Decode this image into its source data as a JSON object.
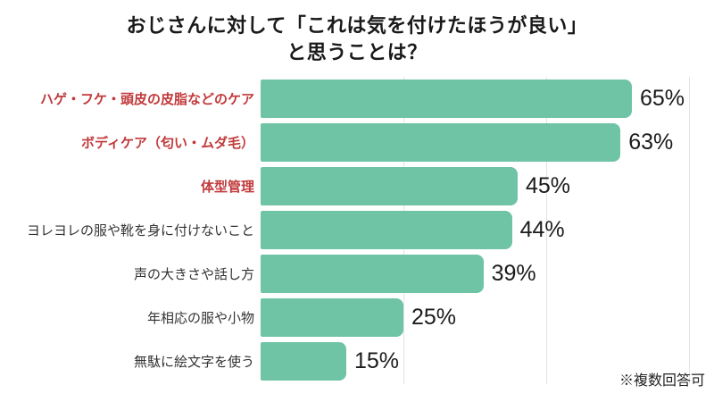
{
  "title": {
    "line1": "おじさんに対して「これは気を付けたほうが良い」",
    "line2": "と思うことは？"
  },
  "footnote": "※複数回答可",
  "colors": {
    "bar": "#6ec4a4",
    "highlight_label": "#c13a3c",
    "label": "#333333",
    "value": "#1b1b1b",
    "title": "#1a1a1a",
    "gridline": "#e3e3e3",
    "background": "#ffffff"
  },
  "chart_data": {
    "type": "bar",
    "orientation": "horizontal",
    "title": "おじさんに対して「これは気を付けたほうが良い」と思うことは？",
    "categories": [
      "ハゲ・フケ・頭皮の皮脂などのケア",
      "ボディケア（匂い・ムダ毛）",
      "体型管理",
      "ヨレヨレの服や靴を身に付けないこと",
      "声の大きさや話し方",
      "年相応の服や小物",
      "無駄に絵文字を使う"
    ],
    "values": [
      65,
      63,
      45,
      44,
      39,
      25,
      15
    ],
    "value_suffix": "%",
    "highlight_indices": [
      0,
      1,
      2
    ],
    "xlim": [
      0,
      100
    ],
    "gridlines_percent": [
      25,
      50,
      75
    ],
    "grid": "vertical-light",
    "legend": "none",
    "annotation": "※複数回答可"
  }
}
